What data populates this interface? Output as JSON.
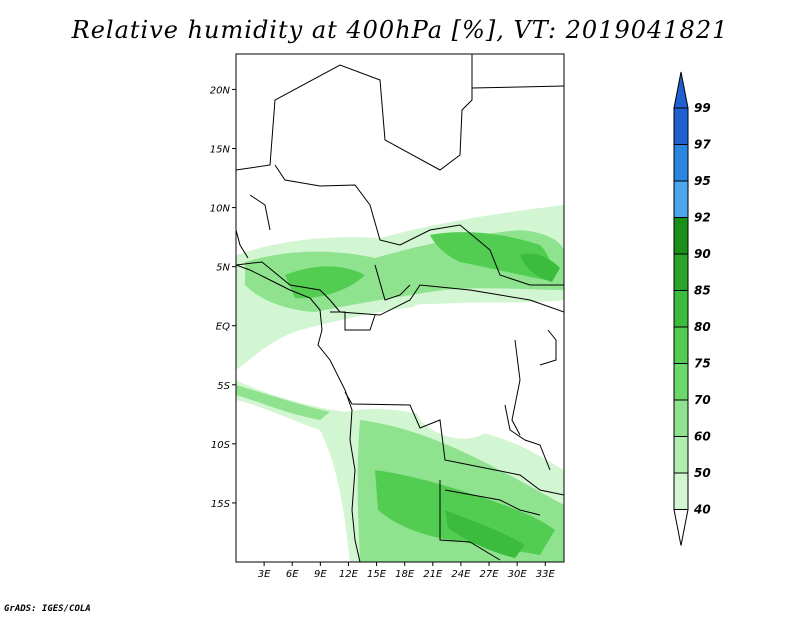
{
  "title": "Relative humidity at 400hPa [%], VT: 2019041821",
  "credit": "GrADS: IGES/COLA",
  "map": {
    "lon_range": [
      0,
      35
    ],
    "lat_range": [
      -20,
      23
    ],
    "lon_ticks": [
      "3E",
      "6E",
      "9E",
      "12E",
      "15E",
      "18E",
      "21E",
      "24E",
      "27E",
      "30E",
      "33E"
    ],
    "lat_ticks": [
      "20N",
      "15N",
      "10N",
      "5N",
      "EQ",
      "5S",
      "10S",
      "15S"
    ]
  },
  "colorbar": {
    "levels": [
      "99",
      "97",
      "95",
      "92",
      "90",
      "85",
      "80",
      "75",
      "70",
      "60",
      "50",
      "40"
    ],
    "colors": [
      "#1e5fd2",
      "#2b86e0",
      "#4ea6ee",
      "#1a8f1a",
      "#2aa52a",
      "#3cbc3c",
      "#52cd52",
      "#6cd86c",
      "#8fe38f",
      "#b1ecb1",
      "#d2f5d2",
      "#effcef"
    ],
    "top_arrow_color": "#1e5fd2",
    "bottom_arrow_color": "#ffffff"
  }
}
